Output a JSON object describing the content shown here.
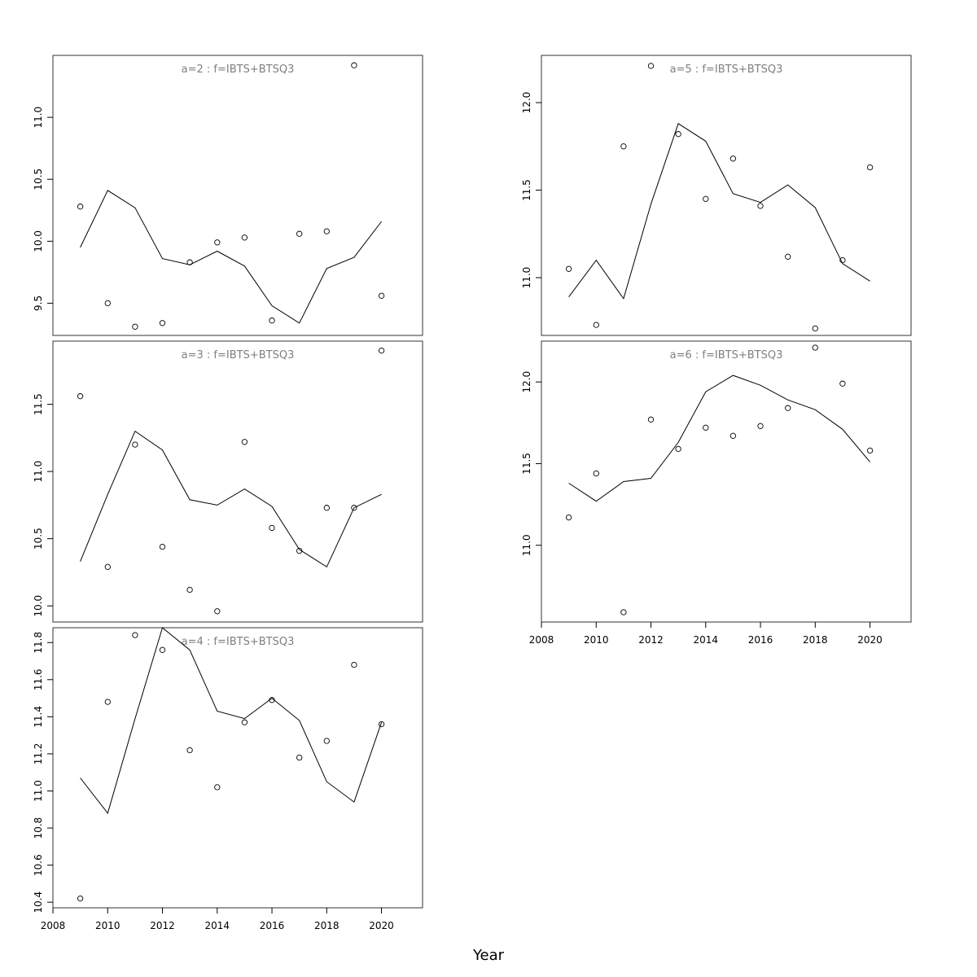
{
  "xlabel": "Year",
  "chart_data": [
    {
      "type": "line",
      "title": "a=2 : f=IBTS+BTSQ3",
      "xlim": [
        2008,
        2021.5
      ],
      "ylim": [
        9.24,
        11.5
      ],
      "yticks": [
        9.5,
        10.0,
        10.5,
        11.0
      ],
      "ytick_labels": [
        "9.5",
        "10.0",
        "10.5",
        "11.0"
      ],
      "x": [
        2009,
        2010,
        2011,
        2012,
        2013,
        2014,
        2015,
        2016,
        2017,
        2018,
        2019,
        2020
      ],
      "fitted": [
        9.95,
        10.41,
        10.27,
        9.86,
        9.81,
        9.92,
        9.8,
        9.48,
        9.34,
        9.78,
        9.87,
        10.16
      ],
      "observed": [
        10.28,
        9.5,
        9.31,
        9.34,
        9.83,
        9.99,
        10.03,
        9.36,
        10.06,
        10.08,
        11.42,
        9.56
      ]
    },
    {
      "type": "line",
      "title": "a=5 : f=IBTS+BTSQ3",
      "xlim": [
        2008,
        2021.5
      ],
      "ylim": [
        10.67,
        12.27
      ],
      "yticks": [
        11.0,
        11.5,
        12.0
      ],
      "ytick_labels": [
        "11.0",
        "11.5",
        "12.0"
      ],
      "x": [
        2009,
        2010,
        2011,
        2012,
        2013,
        2014,
        2015,
        2016,
        2017,
        2018,
        2019,
        2020
      ],
      "fitted": [
        10.89,
        11.1,
        10.88,
        11.42,
        11.88,
        11.78,
        11.48,
        11.43,
        11.53,
        11.4,
        11.08,
        10.98
      ],
      "observed": [
        11.05,
        10.73,
        11.75,
        12.21,
        11.82,
        11.45,
        11.68,
        11.41,
        11.12,
        10.71,
        11.1,
        11.63
      ]
    },
    {
      "type": "line",
      "title": "a=3 : f=IBTS+BTSQ3",
      "xlim": [
        2008,
        2021.5
      ],
      "ylim": [
        9.88,
        11.97
      ],
      "yticks": [
        10.0,
        10.5,
        11.0,
        11.5
      ],
      "ytick_labels": [
        "10.0",
        "10.5",
        "11.0",
        "11.5"
      ],
      "x": [
        2009,
        2010,
        2011,
        2012,
        2013,
        2014,
        2015,
        2016,
        2017,
        2018,
        2019,
        2020
      ],
      "fitted": [
        10.33,
        10.83,
        11.3,
        11.16,
        10.79,
        10.75,
        10.87,
        10.74,
        10.42,
        10.29,
        10.73,
        10.83
      ],
      "observed": [
        11.56,
        10.29,
        11.2,
        10.44,
        10.12,
        9.96,
        11.22,
        10.58,
        10.41,
        10.73,
        10.73,
        11.9
      ]
    },
    {
      "type": "line",
      "title": "a=6 : f=IBTS+BTSQ3",
      "xlim": [
        2008,
        2021.5
      ],
      "ylim": [
        10.53,
        12.25
      ],
      "yticks": [
        11.0,
        11.5,
        12.0
      ],
      "ytick_labels": [
        "11.0",
        "11.5",
        "12.0"
      ],
      "x": [
        2009,
        2010,
        2011,
        2012,
        2013,
        2014,
        2015,
        2016,
        2017,
        2018,
        2019,
        2020
      ],
      "fitted": [
        11.38,
        11.27,
        11.39,
        11.41,
        11.63,
        11.94,
        12.04,
        11.98,
        11.89,
        11.83,
        11.71,
        11.51
      ],
      "observed": [
        11.17,
        11.44,
        10.59,
        11.77,
        11.59,
        11.72,
        11.67,
        11.73,
        11.84,
        12.21,
        11.99,
        11.58
      ]
    },
    {
      "type": "line",
      "title": "a=4 : f=IBTS+BTSQ3",
      "xlim": [
        2008,
        2021.5
      ],
      "ylim": [
        10.37,
        11.88
      ],
      "yticks": [
        10.4,
        10.6,
        10.8,
        11.0,
        11.2,
        11.4,
        11.6,
        11.8
      ],
      "ytick_labels": [
        "10.4",
        "10.6",
        "10.8",
        "11.0",
        "11.2",
        "11.4",
        "11.6",
        "11.8"
      ],
      "x": [
        2009,
        2010,
        2011,
        2012,
        2013,
        2014,
        2015,
        2016,
        2017,
        2018,
        2019,
        2020
      ],
      "fitted": [
        11.07,
        10.88,
        11.39,
        11.88,
        11.76,
        11.43,
        11.39,
        11.5,
        11.38,
        11.05,
        10.94,
        11.37
      ],
      "observed": [
        10.42,
        11.48,
        11.84,
        11.76,
        11.22,
        11.02,
        11.37,
        11.49,
        11.18,
        11.27,
        11.68,
        11.36
      ]
    }
  ],
  "x_axis": {
    "ticks": [
      2008,
      2010,
      2012,
      2014,
      2016,
      2018,
      2020
    ],
    "tick_labels": [
      "2008",
      "2010",
      "2012",
      "2014",
      "2016",
      "2018",
      "2020"
    ]
  }
}
